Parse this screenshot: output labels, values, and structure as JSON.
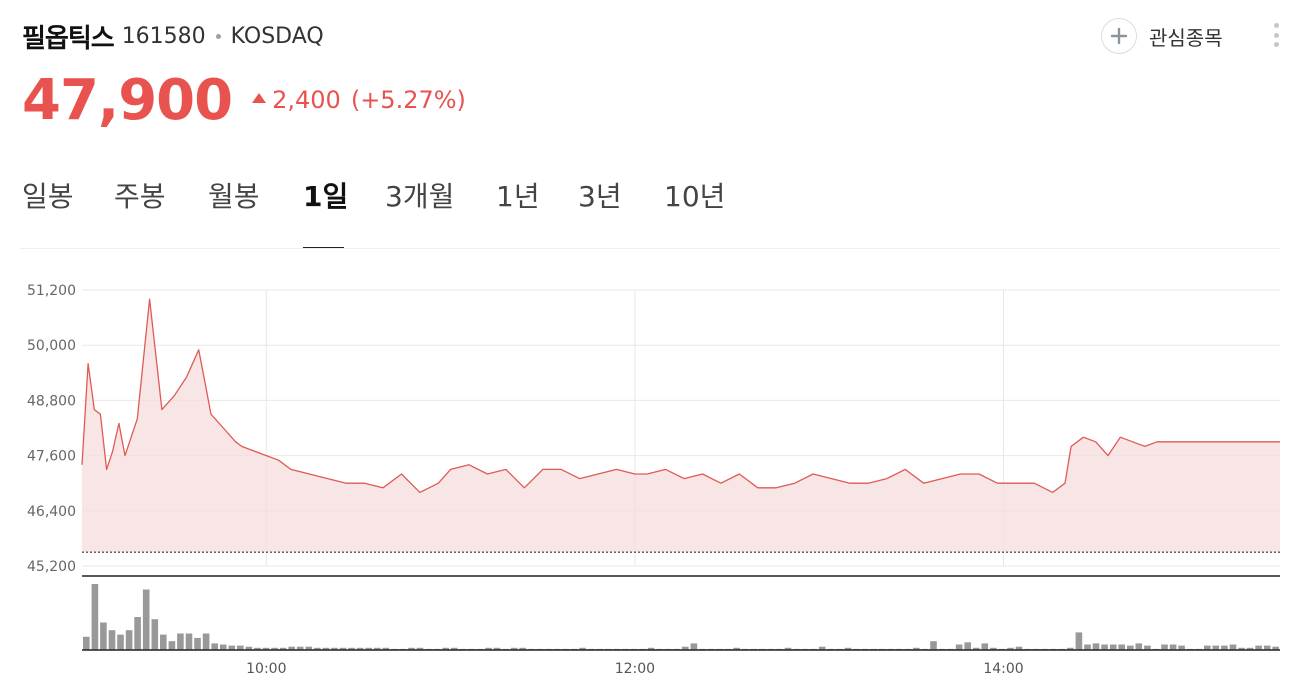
{
  "stock": {
    "name": "필옵틱스",
    "code": "161580",
    "market": "KOSDAQ",
    "price": "47,900",
    "change": "2,400",
    "change_pct": "(+5.27%)",
    "direction": "up"
  },
  "header": {
    "favorite_label": "관심종목",
    "favorite_icon": "plus-icon",
    "more_icon": "more-vertical-icon"
  },
  "colors": {
    "up": "#e9534f",
    "line": "#e05a55",
    "fill": "#f5dcdc",
    "volume": "#999999",
    "grid": "#e8e8e8"
  },
  "tabs": [
    {
      "label": "일봉",
      "active": false
    },
    {
      "label": "주봉",
      "active": false
    },
    {
      "label": "월봉",
      "active": false
    },
    {
      "label": "1일",
      "active": true
    },
    {
      "label": "3개월",
      "active": false
    },
    {
      "label": "1년",
      "active": false
    },
    {
      "label": "3년",
      "active": false
    },
    {
      "label": "10년",
      "active": false
    }
  ],
  "chart_data": {
    "type": "line",
    "title": "",
    "xlabel": "",
    "ylabel": "",
    "x_range": [
      "09:00",
      "15:30"
    ],
    "xtick_labels": [
      "10:00",
      "12:00",
      "14:00"
    ],
    "ytick_labels": [
      "51,200",
      "50,000",
      "48,800",
      "47,600",
      "46,400",
      "45,200"
    ],
    "ylim": [
      45200,
      51200
    ],
    "previous_close": 45500,
    "grid": true,
    "price_series": {
      "x": [
        "09:00",
        "09:02",
        "09:04",
        "09:06",
        "09:08",
        "09:10",
        "09:12",
        "09:14",
        "09:18",
        "09:22",
        "09:26",
        "09:30",
        "09:34",
        "09:38",
        "09:40",
        "09:42",
        "09:46",
        "09:50",
        "09:52",
        "09:56",
        "10:00",
        "10:04",
        "10:08",
        "10:14",
        "10:20",
        "10:26",
        "10:32",
        "10:38",
        "10:44",
        "10:50",
        "10:56",
        "11:00",
        "11:06",
        "11:12",
        "11:18",
        "11:24",
        "11:30",
        "11:36",
        "11:42",
        "11:48",
        "11:54",
        "12:00",
        "12:04",
        "12:10",
        "12:16",
        "12:22",
        "12:28",
        "12:34",
        "12:40",
        "12:46",
        "12:52",
        "12:58",
        "13:04",
        "13:10",
        "13:16",
        "13:22",
        "13:28",
        "13:34",
        "13:40",
        "13:46",
        "13:52",
        "13:58",
        "14:04",
        "14:10",
        "14:16",
        "14:20",
        "14:22",
        "14:24",
        "14:26",
        "14:30",
        "14:34",
        "14:38",
        "14:42",
        "14:46",
        "14:50",
        "14:55",
        "15:00",
        "15:10",
        "15:20",
        "15:30"
      ],
      "y": [
        47400,
        49600,
        48600,
        48500,
        47300,
        47700,
        48300,
        47600,
        48400,
        51000,
        48600,
        48900,
        49300,
        49900,
        49200,
        48500,
        48200,
        47900,
        47800,
        47700,
        47600,
        47500,
        47300,
        47200,
        47100,
        47000,
        47000,
        46900,
        47200,
        46800,
        47000,
        47300,
        47400,
        47200,
        47300,
        46900,
        47300,
        47300,
        47100,
        47200,
        47300,
        47200,
        47200,
        47300,
        47100,
        47200,
        47000,
        47200,
        46900,
        46900,
        47000,
        47200,
        47100,
        47000,
        47000,
        47100,
        47300,
        47000,
        47100,
        47200,
        47200,
        47000,
        47000,
        47000,
        46800,
        47000,
        47800,
        47900,
        48000,
        47900,
        47600,
        48000,
        47900,
        47800,
        47900,
        47900,
        47900,
        47900,
        47900,
        47900
      ]
    },
    "volume_series": {
      "name": "volume",
      "x_range": [
        "09:00",
        "15:30"
      ],
      "values": [
        12,
        60,
        25,
        18,
        14,
        18,
        30,
        55,
        28,
        14,
        8,
        15,
        15,
        11,
        15,
        6,
        5,
        4,
        4,
        3,
        2,
        2,
        2,
        2,
        3,
        3,
        3,
        2,
        2,
        2,
        2,
        2,
        2,
        2,
        2,
        2,
        1,
        1,
        2,
        2,
        1,
        1,
        2,
        2,
        1,
        1,
        1,
        2,
        2,
        1,
        2,
        2,
        1,
        1,
        1,
        1,
        1,
        1,
        2,
        1,
        1,
        1,
        1,
        1,
        1,
        1,
        2,
        1,
        1,
        1,
        3,
        6,
        1,
        1,
        1,
        1,
        2,
        1,
        1,
        1,
        1,
        1,
        2,
        1,
        1,
        1,
        3,
        1,
        1,
        2,
        1,
        1,
        1,
        1,
        1,
        1,
        1,
        2,
        1,
        8,
        1,
        1,
        5,
        7,
        2,
        6,
        2,
        1,
        2,
        3,
        1,
        1,
        1,
        1,
        1,
        2,
        16,
        5,
        6,
        5,
        5,
        5,
        4,
        6,
        4,
        1,
        5,
        5,
        4,
        1,
        1,
        4,
        4,
        4,
        5,
        2,
        2,
        4,
        4,
        3
      ]
    }
  }
}
